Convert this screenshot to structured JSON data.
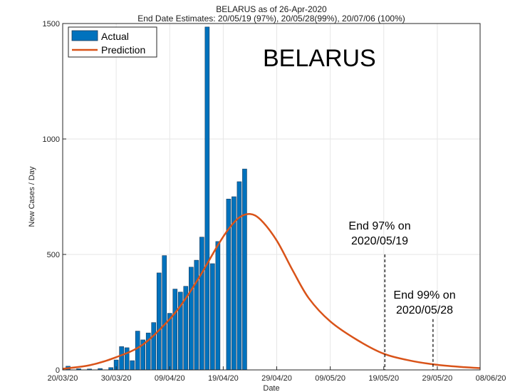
{
  "chart_data": {
    "type": "bar",
    "title": "BELARUS as of 26-Apr-2020",
    "subtitle": "End Date Estimates: 20/05/19 (97%), 20/05/28(99%), 20/07/06 (100%)",
    "country_label": "BELARUS",
    "xlabel": "Date",
    "ylabel": "New Cases / Day",
    "ylim": [
      0,
      1500
    ],
    "xlim_day": [
      0,
      78
    ],
    "yticks": [
      0,
      500,
      1000,
      1500
    ],
    "xticks": [
      {
        "day": 0,
        "label": "20/03/20"
      },
      {
        "day": 10,
        "label": "30/03/20"
      },
      {
        "day": 20,
        "label": "09/04/20"
      },
      {
        "day": 30,
        "label": "19/04/20"
      },
      {
        "day": 40,
        "label": "29/04/20"
      },
      {
        "day": 50,
        "label": "09/05/20"
      },
      {
        "day": 60,
        "label": "19/05/20"
      },
      {
        "day": 70,
        "label": "29/05/20"
      },
      {
        "day": 80,
        "label": "08/06/20"
      }
    ],
    "grid": true,
    "legend_position": "top-left",
    "series": [
      {
        "name": "Actual",
        "type": "bar",
        "color": "#0072BD",
        "x": [
          1,
          3,
          5,
          7,
          9,
          10,
          11,
          12,
          13,
          14,
          15,
          16,
          17,
          18,
          19,
          20,
          21,
          22,
          23,
          24,
          25,
          26,
          27,
          28,
          29,
          31,
          32,
          33,
          34,
          35,
          36,
          37
        ],
        "values": [
          16,
          5,
          4,
          6,
          10,
          43,
          101,
          96,
          40,
          168,
          130,
          160,
          205,
          420,
          495,
          245,
          350,
          337,
          362,
          445,
          475,
          575,
          1485,
          460,
          556,
          740,
          750,
          815,
          870,
          0,
          0,
          0
        ]
      },
      {
        "name": "Prediction",
        "type": "line",
        "color": "#D95319",
        "x": [
          0,
          5,
          10,
          15,
          20,
          23,
          26,
          29,
          31,
          33,
          35,
          37,
          40,
          43,
          46,
          50,
          55,
          60,
          65,
          70,
          75,
          78
        ],
        "values": [
          5,
          20,
          55,
          110,
          220,
          310,
          420,
          540,
          610,
          660,
          675,
          650,
          560,
          430,
          310,
          210,
          130,
          70,
          40,
          22,
          12,
          8
        ]
      }
    ],
    "annotations": [
      {
        "line1": "End 97% on",
        "line2": "2020/05/19",
        "day": 60.2,
        "y_top": 500
      },
      {
        "line1": "End 99% on",
        "line2": "2020/05/28",
        "day": 69.2,
        "y_top": 220
      }
    ]
  }
}
